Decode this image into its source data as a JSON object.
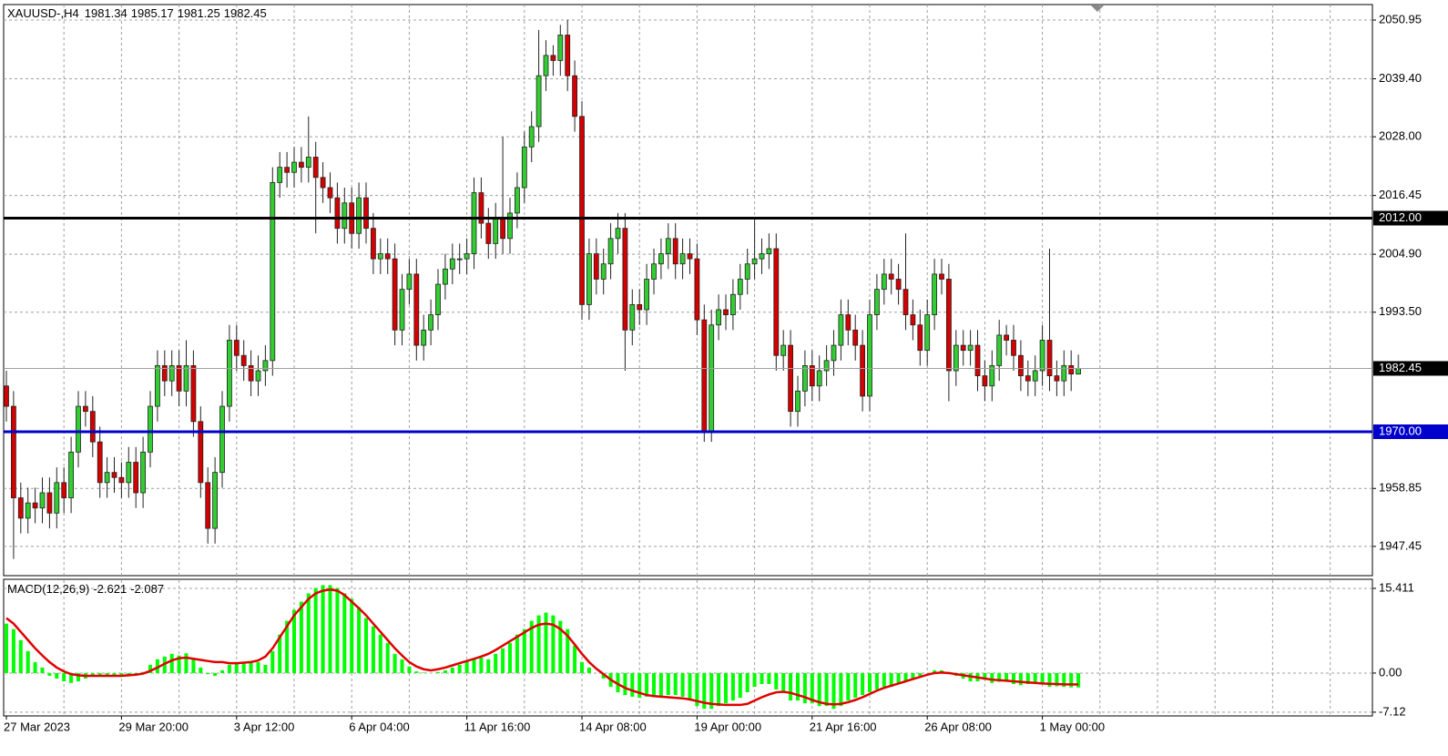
{
  "chart_data": {
    "type": "candlestick",
    "symbol": "XAUUSD-,H4",
    "categories": [
      "27 Mar 2023",
      null,
      null,
      null,
      null,
      null,
      null,
      null,
      null,
      null,
      null,
      null,
      null,
      null,
      null,
      null,
      "29 Mar 20:00",
      null,
      null,
      null,
      null,
      null,
      null,
      null,
      null,
      null,
      null,
      null,
      null,
      null,
      null,
      null,
      "3 Apr 12:00",
      null,
      null,
      null,
      null,
      null,
      null,
      null,
      null,
      null,
      null,
      null,
      null,
      null,
      null,
      null,
      "6 Apr 04:00",
      null,
      null,
      null,
      null,
      null,
      null,
      null,
      null,
      null,
      null,
      null,
      null,
      null,
      null,
      null,
      "11 Apr 16:00",
      null,
      null,
      null,
      null,
      null,
      null,
      null,
      null,
      null,
      null,
      null,
      null,
      null,
      null,
      null,
      "14 Apr 08:00",
      null,
      null,
      null,
      null,
      null,
      null,
      null,
      null,
      null,
      null,
      null,
      null,
      null,
      null,
      null,
      "19 Apr 00:00",
      null,
      null,
      null,
      null,
      null,
      null,
      null,
      null,
      null,
      null,
      null,
      null,
      null,
      null,
      null,
      "21 Apr 16:00",
      null,
      null,
      null,
      null,
      null,
      null,
      null,
      null,
      null,
      null,
      null,
      null,
      null,
      null,
      null,
      "26 Apr 08:00",
      null,
      null,
      null,
      null,
      null,
      null,
      null,
      null,
      null,
      null,
      null,
      null,
      null,
      null,
      null,
      "1 May 00:00",
      null,
      null,
      null,
      null,
      null
    ],
    "open": [
      1979,
      1975,
      1957,
      1953,
      1956,
      1955,
      1958,
      1954,
      1960,
      1957,
      1966,
      1975,
      1974,
      1968,
      1960,
      1962,
      1961,
      1960,
      1964,
      1958,
      1966,
      1975,
      1983,
      1980,
      1983,
      1978,
      1983,
      1972,
      1960,
      1951,
      1962,
      1975,
      1988,
      1985,
      1983,
      1980,
      1982,
      1984,
      2019,
      2022,
      2021,
      2023,
      2022,
      2024,
      2020,
      2018,
      2016,
      2010,
      2015,
      2009,
      2016,
      2010,
      2004,
      2005,
      2004,
      1990,
      1998,
      2001,
      1987,
      1990,
      1993,
      1999,
      2002,
      2004,
      2004,
      2005,
      2017,
      2011,
      2007,
      2012,
      2008,
      2013,
      2018,
      2026,
      2030,
      2040,
      2044,
      2043,
      2048,
      2040,
      2032,
      1995,
      2005,
      2000,
      2003,
      2008,
      2010,
      1990,
      1995,
      1994,
      2000,
      2003,
      2005,
      2008,
      2003,
      2005,
      2004,
      1992,
      1970,
      1991,
      1994,
      1993,
      1997,
      2000,
      2003,
      2004,
      2005,
      2006,
      1985,
      1987,
      1974,
      1978,
      1983,
      1979,
      1982,
      1984,
      1987,
      1993,
      1990,
      1987,
      1977,
      1993,
      1998,
      2001,
      2000,
      1998,
      1993,
      1991,
      1986,
      1993,
      2001,
      2000,
      1982,
      1987,
      1986,
      1987,
      1981,
      1979,
      1983,
      1989,
      1988,
      1985,
      1981,
      1980,
      1982,
      1988,
      1981,
      1980,
      1983,
      1981.34
    ],
    "high": [
      1982,
      1978,
      1960,
      1959,
      1959,
      1961,
      1961,
      1963,
      1963,
      1969,
      1978,
      1978,
      1977,
      1971,
      1965,
      1965,
      1964,
      1967,
      1967,
      1969,
      1978,
      1986,
      1986,
      1986,
      1986,
      1988,
      1986,
      1975,
      1963,
      1965,
      1978,
      1991,
      1991,
      1988,
      1986,
      1985,
      1987,
      2022,
      2025,
      2025,
      2026,
      2026,
      2032,
      2027,
      2023,
      2021,
      2019,
      2018,
      2018,
      2019,
      2019,
      2013,
      2008,
      2008,
      2007,
      2001,
      2004,
      2004,
      1993,
      1996,
      2002,
      2005,
      2007,
      2007,
      2008,
      2020,
      2020,
      2014,
      2015,
      2028,
      2016,
      2021,
      2029,
      2033,
      2049,
      2047,
      2046,
      2050,
      2051,
      2043,
      2035,
      2008,
      2008,
      2006,
      2011,
      2013,
      2013,
      1998,
      1998,
      2003,
      2006,
      2008,
      2011,
      2011,
      2008,
      2008,
      2007,
      1995,
      1994,
      1997,
      1997,
      2000,
      2003,
      2006,
      2012,
      2008,
      2009,
      2009,
      1990,
      1990,
      1981,
      1986,
      1986,
      1985,
      1987,
      1990,
      1996,
      1996,
      1993,
      1990,
      1996,
      2001,
      2004,
      2004,
      2003,
      2009,
      1996,
      1994,
      1996,
      2004,
      2004,
      2003,
      1990,
      1990,
      1990,
      1990,
      1984,
      1986,
      1992,
      1991,
      1991,
      1988,
      1984,
      1985,
      1991,
      2006,
      1984,
      1986,
      1986,
      1985.17
    ],
    "low": [
      1972,
      1945,
      1950,
      1950,
      1952,
      1952,
      1951,
      1951,
      1954,
      1954,
      1963,
      1971,
      1965,
      1957,
      1957,
      1958,
      1957,
      1957,
      1955,
      1955,
      1963,
      1972,
      1977,
      1977,
      1975,
      1975,
      1969,
      1957,
      1948,
      1948,
      1959,
      1972,
      1982,
      1980,
      1977,
      1977,
      1979,
      1981,
      2016,
      2018,
      2018,
      2019,
      2019,
      2009,
      2015,
      2013,
      2007,
      2007,
      2006,
      2006,
      2007,
      2001,
      2001,
      2001,
      1987,
      1987,
      1995,
      1984,
      1984,
      1987,
      1990,
      1996,
      1999,
      2001,
      2001,
      2002,
      2008,
      2004,
      2004,
      2005,
      2005,
      2010,
      2015,
      2023,
      2027,
      2037,
      2040,
      2040,
      2037,
      2029,
      1992,
      1992,
      1997,
      1997,
      2000,
      2005,
      1982,
      1987,
      1991,
      1991,
      1997,
      2000,
      2002,
      2000,
      2000,
      2001,
      1989,
      1968,
      1968,
      1988,
      1990,
      1990,
      1994,
      1997,
      2000,
      2001,
      2002,
      1982,
      1982,
      1971,
      1971,
      1975,
      1976,
      1976,
      1979,
      1981,
      1984,
      1987,
      1984,
      1974,
      1974,
      1990,
      1995,
      1997,
      1995,
      1990,
      1988,
      1983,
      1983,
      1990,
      1997,
      1976,
      1979,
      1983,
      1983,
      1978,
      1976,
      1976,
      1980,
      1985,
      1982,
      1978,
      1977,
      1977,
      1979,
      1978,
      1977,
      1977,
      1978,
      1981.25
    ],
    "close": [
      1975,
      1957,
      1953,
      1956,
      1955,
      1958,
      1954,
      1960,
      1957,
      1966,
      1975,
      1974,
      1968,
      1960,
      1962,
      1961,
      1960,
      1964,
      1958,
      1966,
      1975,
      1983,
      1980,
      1983,
      1978,
      1983,
      1972,
      1960,
      1951,
      1962,
      1975,
      1988,
      1985,
      1983,
      1980,
      1982,
      1984,
      2019,
      2022,
      2021,
      2023,
      2022,
      2024,
      2020,
      2018,
      2016,
      2010,
      2015,
      2009,
      2016,
      2010,
      2004,
      2005,
      2004,
      1990,
      1998,
      2001,
      1987,
      1990,
      1993,
      1999,
      2002,
      2004,
      2004,
      2005,
      2017,
      2011,
      2007,
      2012,
      2008,
      2013,
      2018,
      2026,
      2030,
      2040,
      2044,
      2043,
      2048,
      2040,
      2032,
      1995,
      2005,
      2000,
      2003,
      2008,
      2010,
      1990,
      1995,
      1994,
      2000,
      2003,
      2005,
      2008,
      2003,
      2005,
      2004,
      1992,
      1970,
      1991,
      1994,
      1993,
      1997,
      2000,
      2003,
      2004,
      2005,
      2006,
      1985,
      1987,
      1974,
      1978,
      1983,
      1979,
      1982,
      1984,
      1987,
      1993,
      1990,
      1987,
      1977,
      1993,
      1998,
      2001,
      2000,
      1998,
      1993,
      1991,
      1986,
      1993,
      2001,
      2000,
      1982,
      1987,
      1986,
      1987,
      1981,
      1979,
      1983,
      1989,
      1988,
      1985,
      1981,
      1980,
      1982,
      1988,
      1981,
      1980,
      1983,
      1981.34,
      1982.45
    ],
    "up_color": "#32cd32",
    "down_color": "#d40000",
    "ylim": [
      1941.7,
      2054.0
    ],
    "yticks": [
      2050.95,
      {
        "value": 2039.4,
        "label": "2039.40"
      },
      {
        "value": 2028,
        "label": "2028.00"
      },
      2016.45,
      {
        "value": 2004.9,
        "label": "2004.90"
      },
      {
        "value": 1993.5,
        "label": "1993.50"
      },
      1958.85,
      1947.45
    ],
    "grid": true,
    "hlines": [
      {
        "value": 2012,
        "label": "2012.00",
        "color": "#000000"
      },
      {
        "value": 1970,
        "label": "1970.00",
        "color": "#0000cc"
      }
    ],
    "macd": {
      "label": "MACD(12,26,9)",
      "histogram": [
        9,
        8,
        6,
        4,
        2,
        1,
        -0.5,
        -1,
        -1.5,
        -1.8,
        -1.5,
        -1,
        -0.5,
        -0.5,
        -0.5,
        -0.5,
        -0.6,
        -0.5,
        -0.3,
        0.2,
        1.5,
        2.5,
        3,
        3.5,
        3.2,
        3.6,
        2.5,
        1,
        -0.2,
        -0.5,
        0.5,
        1.5,
        2,
        2,
        2.2,
        2,
        1.5,
        4,
        7,
        9.5,
        11.5,
        13,
        14.5,
        15.5,
        16,
        16,
        15.5,
        14.5,
        13.5,
        12,
        10,
        8.5,
        7,
        5.5,
        3.5,
        2.5,
        1.2,
        0.3,
        0.1,
        0,
        0.2,
        0.5,
        1,
        1.5,
        2.2,
        2.5,
        2.8,
        2.5,
        3.5,
        4.5,
        5.5,
        7,
        8,
        9.5,
        10.5,
        11,
        10.5,
        9.5,
        8,
        5,
        2,
        1,
        0,
        -1,
        -2.5,
        -3.5,
        -4,
        -4.3,
        -4.5,
        -4.3,
        -4.2,
        -4.5,
        -4,
        -4,
        -4.3,
        -5,
        -6,
        -6.5,
        -6.5,
        -6,
        -5.5,
        -5,
        -4.5,
        -3.5,
        -2.5,
        -2,
        -2,
        -3,
        -3.5,
        -5,
        -5,
        -5.5,
        -5.5,
        -6,
        -6,
        -6.5,
        -6,
        -5,
        -4.5,
        -4,
        -3.5,
        -3,
        -2.5,
        -2.5,
        -2,
        -1.5,
        -1,
        -0.5,
        0,
        0.5,
        0.5,
        0.2,
        -0.5,
        -1,
        -1.5,
        -1.5,
        -1.2,
        -1.8,
        -1.6,
        -1.5,
        -2,
        -2.2,
        -2,
        -1.8,
        -2,
        -2.5,
        -2.4,
        -2.5,
        -2.6,
        -2.621
      ],
      "signal": [
        10,
        9,
        7.5,
        6,
        4.5,
        3.2,
        2,
        1,
        0.3,
        -0.2,
        -0.4,
        -0.5,
        -0.5,
        -0.5,
        -0.5,
        -0.5,
        -0.5,
        -0.4,
        -0.3,
        -0.1,
        0.4,
        1,
        1.7,
        2.3,
        2.7,
        2.8,
        2.6,
        2.4,
        2.2,
        2,
        2,
        1.8,
        1.8,
        1.9,
        2,
        2.3,
        3,
        4.5,
        6.5,
        8.5,
        10.5,
        12,
        13.5,
        14.5,
        15,
        15.2,
        15,
        14.2,
        13,
        11.8,
        10.5,
        9,
        7.5,
        6,
        4.5,
        3.2,
        2,
        1.2,
        0.7,
        0.5,
        0.7,
        1,
        1.4,
        1.8,
        2.2,
        2.6,
        3,
        3.5,
        4.2,
        5,
        5.8,
        6.6,
        7.4,
        8.2,
        8.8,
        9,
        8.8,
        8,
        6.8,
        5.2,
        3.5,
        2,
        0.8,
        -0.2,
        -1.2,
        -2,
        -2.7,
        -3.2,
        -3.6,
        -4,
        -4.2,
        -4.3,
        -4.4,
        -4.5,
        -4.6,
        -4.8,
        -5.1,
        -5.4,
        -5.6,
        -5.7,
        -5.8,
        -5.8,
        -5.8,
        -5.6,
        -5,
        -4.4,
        -3.9,
        -3.5,
        -3.4,
        -3.6,
        -4,
        -4.4,
        -4.9,
        -5.3,
        -5.6,
        -5.7,
        -5.6,
        -5.3,
        -4.9,
        -4.4,
        -3.8,
        -3.2,
        -2.7,
        -2.3,
        -1.9,
        -1.5,
        -1.1,
        -0.7,
        -0.3,
        0,
        0.1,
        0,
        -0.2,
        -0.4,
        -0.6,
        -0.8,
        -1,
        -1.2,
        -1.3,
        -1.4,
        -1.5,
        -1.6,
        -1.7,
        -1.8,
        -1.9,
        -1.95,
        -2,
        -2.05,
        -2.07,
        -2.087
      ],
      "hist_color": "#00ff00",
      "signal_color": "#e00000",
      "ylim": [
        -7.8,
        16.9
      ],
      "yticks": [
        15.411,
        {
          "value": 0,
          "label": "0.00"
        },
        -7.12
      ]
    }
  }
}
